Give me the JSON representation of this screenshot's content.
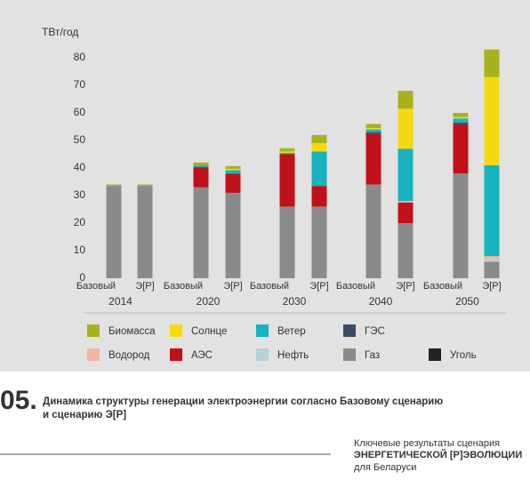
{
  "chart_data": {
    "type": "stacked-bar",
    "y_label": "ТВт/год",
    "categories": [
      "Базовый",
      "Э[Р]",
      "Базовый",
      "Э[Р]",
      "Базовый",
      "Э[Р]",
      "Базовый",
      "Э[Р]",
      "Базовый",
      "Э[Р]"
    ],
    "groups": [
      "2014",
      "2020",
      "2030",
      "2040",
      "2050"
    ],
    "ylim": [
      0,
      80
    ],
    "yticks": [
      0,
      10,
      20,
      30,
      40,
      50,
      60,
      70,
      80
    ],
    "series": [
      {
        "name": "Уголь",
        "color": "#222222",
        "values": [
          0,
          0,
          0,
          0,
          0,
          0,
          0,
          0,
          0,
          0
        ]
      },
      {
        "name": "Газ",
        "color": "#8a8a8a",
        "values": [
          33.5,
          33.5,
          33,
          31,
          26,
          26,
          34,
          20,
          38,
          6
        ]
      },
      {
        "name": "Нефть",
        "color": "#b9cfdc",
        "values": [
          0,
          0,
          0,
          0,
          0,
          0,
          0,
          0,
          0,
          0.8
        ]
      },
      {
        "name": "АЭС",
        "color": "#c0101a",
        "values": [
          0,
          0,
          7,
          7,
          19,
          7.5,
          18.5,
          7.5,
          18,
          0
        ]
      },
      {
        "name": "Водород",
        "color": "#f3b7a0",
        "values": [
          0,
          0,
          0,
          0,
          0,
          0,
          0,
          0.5,
          0,
          1.2
        ]
      },
      {
        "name": "ГЭС",
        "color": "#3a4a6a",
        "values": [
          0,
          0,
          0.3,
          0,
          0,
          0,
          0.5,
          0,
          0.5,
          0
        ]
      },
      {
        "name": "Ветер",
        "color": "#16b3bf",
        "values": [
          0,
          0,
          0.7,
          1.2,
          0.5,
          12.5,
          1,
          19,
          1.5,
          33
        ]
      },
      {
        "name": "Солнце",
        "color": "#f5da12",
        "values": [
          0,
          0,
          0,
          0.5,
          0.5,
          3,
          0.5,
          14.5,
          0.5,
          32
        ]
      },
      {
        "name": "Биомасса",
        "color": "#a8b21e",
        "values": [
          0.5,
          0.5,
          1,
          1,
          1.2,
          3,
          1.5,
          6.5,
          1.5,
          10
        ]
      }
    ]
  },
  "caption": {
    "number": "05.",
    "lines": [
      "Динамика структуры генерации электроэнергии согласно Базовому сценарию",
      "и сценарию Э[Р]"
    ]
  },
  "branding": [
    "Ключевые результаты сценария",
    "ЭНЕРГЕТИЧЕСКОЙ [Р]ЭВОЛЮЦИИ",
    "для Беларуси"
  ]
}
